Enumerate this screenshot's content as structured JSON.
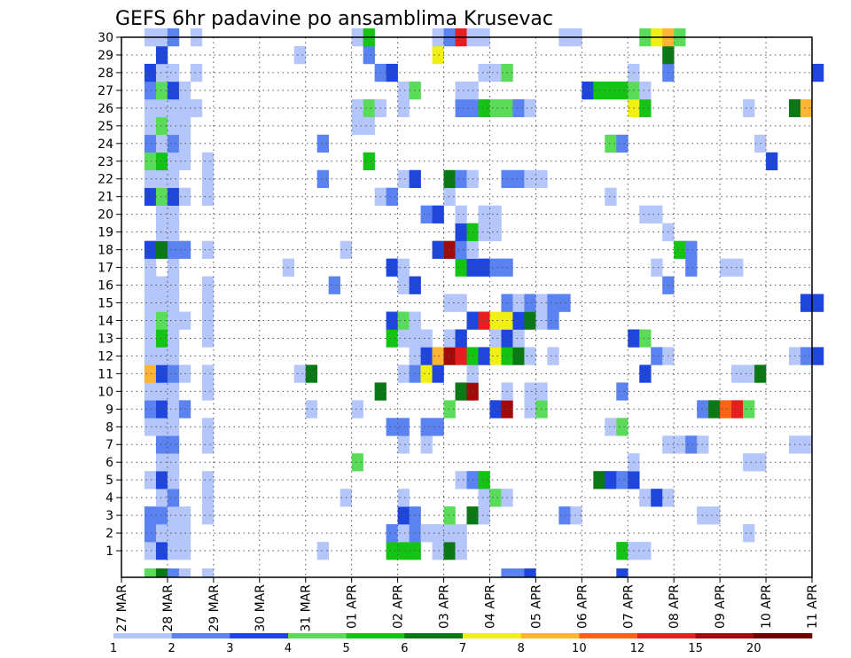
{
  "chart_data": {
    "type": "heatmap",
    "title": "GEFS 6hr padavine po ansamblima Krusevac",
    "xlabel": "",
    "ylabel": "",
    "x_tick_labels": [
      "27 MAR",
      "28 MAR",
      "29 MAR",
      "30 MAR",
      "31 MAR",
      "01 APR",
      "02 APR",
      "03 APR",
      "04 APR",
      "05 APR",
      "06 APR",
      "07 APR",
      "08 APR",
      "09 APR",
      "10 APR",
      "11 APR"
    ],
    "y_tick_labels": [
      "1",
      "2",
      "3",
      "4",
      "5",
      "6",
      "7",
      "8",
      "9",
      "10",
      "11",
      "12",
      "13",
      "14",
      "15",
      "16",
      "17",
      "18",
      "19",
      "20",
      "21",
      "22",
      "23",
      "24",
      "25",
      "26",
      "27",
      "28",
      "29",
      "30"
    ],
    "members": 30,
    "steps_per_day": 4,
    "grid": "dotted",
    "colorbar": {
      "position": "bottom",
      "levels": [
        "1",
        "2",
        "3",
        "4",
        "5",
        "6",
        "7",
        "8",
        "10",
        "12",
        "15",
        "20"
      ],
      "colors": [
        "#b4c6fa",
        "#5a82f0",
        "#1e46dc",
        "#5adc5a",
        "#14c314",
        "#0a7814",
        "#f0f014",
        "#ffb432",
        "#fa6414",
        "#e61e1e",
        "#a00a0a",
        "#6e0000"
      ]
    },
    "cells": [
      [
        1,
        2,
        1
      ],
      [
        1,
        3,
        3
      ],
      [
        1,
        4,
        1
      ],
      [
        1,
        5,
        1
      ],
      [
        1,
        17,
        1
      ],
      [
        1,
        23,
        5
      ],
      [
        1,
        24,
        5
      ],
      [
        1,
        25,
        5
      ],
      [
        1,
        27,
        1
      ],
      [
        1,
        28,
        6
      ],
      [
        1,
        29,
        1
      ],
      [
        1,
        43,
        5
      ],
      [
        1,
        44,
        1
      ],
      [
        1,
        45,
        1
      ],
      [
        2,
        2,
        2
      ],
      [
        2,
        3,
        1
      ],
      [
        2,
        4,
        1
      ],
      [
        2,
        5,
        1
      ],
      [
        2,
        23,
        2
      ],
      [
        2,
        24,
        1
      ],
      [
        2,
        25,
        2
      ],
      [
        2,
        26,
        1
      ],
      [
        2,
        27,
        1
      ],
      [
        2,
        28,
        1
      ],
      [
        2,
        29,
        1
      ],
      [
        2,
        54,
        1
      ],
      [
        3,
        2,
        2
      ],
      [
        3,
        3,
        2
      ],
      [
        3,
        4,
        1
      ],
      [
        3,
        5,
        1
      ],
      [
        3,
        7,
        1
      ],
      [
        3,
        24,
        3
      ],
      [
        3,
        25,
        2
      ],
      [
        3,
        28,
        4
      ],
      [
        3,
        30,
        6
      ],
      [
        3,
        31,
        1
      ],
      [
        3,
        38,
        2
      ],
      [
        3,
        39,
        1
      ],
      [
        3,
        50,
        1
      ],
      [
        3,
        51,
        1
      ],
      [
        4,
        3,
        1
      ],
      [
        4,
        4,
        2
      ],
      [
        4,
        7,
        1
      ],
      [
        4,
        19,
        1
      ],
      [
        4,
        24,
        1
      ],
      [
        4,
        31,
        1
      ],
      [
        4,
        32,
        4
      ],
      [
        4,
        33,
        1
      ],
      [
        4,
        45,
        1
      ],
      [
        4,
        46,
        3
      ],
      [
        4,
        47,
        1
      ],
      [
        5,
        2,
        1
      ],
      [
        5,
        3,
        3
      ],
      [
        5,
        4,
        1
      ],
      [
        5,
        7,
        1
      ],
      [
        5,
        29,
        1
      ],
      [
        5,
        30,
        2
      ],
      [
        5,
        31,
        5
      ],
      [
        5,
        41,
        6
      ],
      [
        5,
        42,
        3
      ],
      [
        5,
        43,
        2
      ],
      [
        5,
        44,
        3
      ],
      [
        6,
        3,
        1
      ],
      [
        6,
        4,
        1
      ],
      [
        6,
        20,
        4
      ],
      [
        6,
        44,
        1
      ],
      [
        6,
        54,
        1
      ],
      [
        6,
        55,
        1
      ],
      [
        7,
        3,
        2
      ],
      [
        7,
        4,
        2
      ],
      [
        7,
        7,
        1
      ],
      [
        7,
        24,
        1
      ],
      [
        7,
        26,
        1
      ],
      [
        7,
        47,
        1
      ],
      [
        7,
        48,
        1
      ],
      [
        7,
        49,
        2
      ],
      [
        7,
        50,
        1
      ],
      [
        7,
        58,
        1
      ],
      [
        7,
        59,
        1
      ],
      [
        8,
        2,
        1
      ],
      [
        8,
        3,
        1
      ],
      [
        8,
        4,
        1
      ],
      [
        8,
        7,
        1
      ],
      [
        8,
        23,
        2
      ],
      [
        8,
        24,
        2
      ],
      [
        8,
        26,
        2
      ],
      [
        8,
        27,
        2
      ],
      [
        8,
        42,
        1
      ],
      [
        8,
        43,
        4
      ],
      [
        9,
        2,
        2
      ],
      [
        9,
        3,
        3
      ],
      [
        9,
        4,
        1
      ],
      [
        9,
        5,
        2
      ],
      [
        9,
        16,
        1
      ],
      [
        9,
        20,
        1
      ],
      [
        9,
        28,
        4
      ],
      [
        9,
        32,
        3
      ],
      [
        9,
        33,
        11
      ],
      [
        9,
        35,
        1
      ],
      [
        9,
        36,
        4
      ],
      [
        9,
        50,
        2
      ],
      [
        9,
        51,
        6
      ],
      [
        9,
        52,
        9
      ],
      [
        9,
        53,
        10
      ],
      [
        9,
        54,
        4
      ],
      [
        10,
        2,
        1
      ],
      [
        10,
        3,
        1
      ],
      [
        10,
        4,
        1
      ],
      [
        10,
        7,
        1
      ],
      [
        10,
        22,
        6
      ],
      [
        10,
        29,
        6
      ],
      [
        10,
        30,
        11
      ],
      [
        10,
        33,
        1
      ],
      [
        10,
        35,
        1
      ],
      [
        10,
        36,
        1
      ],
      [
        10,
        43,
        2
      ],
      [
        11,
        2,
        8
      ],
      [
        11,
        3,
        3
      ],
      [
        11,
        4,
        2
      ],
      [
        11,
        5,
        1
      ],
      [
        11,
        7,
        1
      ],
      [
        11,
        15,
        1
      ],
      [
        11,
        16,
        6
      ],
      [
        11,
        24,
        1
      ],
      [
        11,
        25,
        2
      ],
      [
        11,
        26,
        7
      ],
      [
        11,
        27,
        3
      ],
      [
        11,
        30,
        1
      ],
      [
        11,
        45,
        3
      ],
      [
        11,
        53,
        1
      ],
      [
        11,
        54,
        1
      ],
      [
        11,
        55,
        6
      ],
      [
        12,
        2,
        1
      ],
      [
        12,
        3,
        1
      ],
      [
        12,
        4,
        1
      ],
      [
        12,
        25,
        1
      ],
      [
        12,
        26,
        3
      ],
      [
        12,
        27,
        8
      ],
      [
        12,
        28,
        11
      ],
      [
        12,
        29,
        10
      ],
      [
        12,
        30,
        5
      ],
      [
        12,
        31,
        3
      ],
      [
        12,
        32,
        7
      ],
      [
        12,
        33,
        5
      ],
      [
        12,
        34,
        6
      ],
      [
        12,
        35,
        1
      ],
      [
        12,
        37,
        1
      ],
      [
        12,
        46,
        2
      ],
      [
        12,
        47,
        1
      ],
      [
        12,
        58,
        1
      ],
      [
        12,
        59,
        2
      ],
      [
        12,
        60,
        3
      ],
      [
        13,
        2,
        1
      ],
      [
        13,
        3,
        5
      ],
      [
        13,
        4,
        1
      ],
      [
        13,
        7,
        1
      ],
      [
        13,
        23,
        5
      ],
      [
        13,
        24,
        1
      ],
      [
        13,
        25,
        1
      ],
      [
        13,
        26,
        1
      ],
      [
        13,
        28,
        1
      ],
      [
        13,
        29,
        3
      ],
      [
        13,
        32,
        1
      ],
      [
        13,
        33,
        3
      ],
      [
        13,
        34,
        1
      ],
      [
        13,
        44,
        3
      ],
      [
        13,
        45,
        4
      ],
      [
        14,
        2,
        1
      ],
      [
        14,
        3,
        4
      ],
      [
        14,
        4,
        1
      ],
      [
        14,
        5,
        1
      ],
      [
        14,
        7,
        1
      ],
      [
        14,
        23,
        3
      ],
      [
        14,
        24,
        4
      ],
      [
        14,
        25,
        1
      ],
      [
        14,
        30,
        3
      ],
      [
        14,
        31,
        10
      ],
      [
        14,
        32,
        7
      ],
      [
        14,
        33,
        7
      ],
      [
        14,
        34,
        3
      ],
      [
        14,
        35,
        6
      ],
      [
        14,
        36,
        1
      ],
      [
        14,
        37,
        2
      ],
      [
        15,
        2,
        1
      ],
      [
        15,
        3,
        1
      ],
      [
        15,
        4,
        1
      ],
      [
        15,
        7,
        1
      ],
      [
        15,
        28,
        1
      ],
      [
        15,
        29,
        1
      ],
      [
        15,
        33,
        2
      ],
      [
        15,
        34,
        1
      ],
      [
        15,
        35,
        2
      ],
      [
        15,
        36,
        1
      ],
      [
        15,
        37,
        2
      ],
      [
        15,
        38,
        2
      ],
      [
        15,
        59,
        3
      ],
      [
        15,
        60,
        3
      ],
      [
        16,
        2,
        1
      ],
      [
        16,
        3,
        1
      ],
      [
        16,
        4,
        1
      ],
      [
        16,
        7,
        1
      ],
      [
        16,
        18,
        2
      ],
      [
        16,
        24,
        1
      ],
      [
        16,
        25,
        3
      ],
      [
        16,
        47,
        2
      ],
      [
        17,
        2,
        1
      ],
      [
        17,
        4,
        1
      ],
      [
        17,
        14,
        1
      ],
      [
        17,
        23,
        3
      ],
      [
        17,
        24,
        1
      ],
      [
        17,
        29,
        5
      ],
      [
        17,
        30,
        3
      ],
      [
        17,
        31,
        3
      ],
      [
        17,
        32,
        2
      ],
      [
        17,
        33,
        2
      ],
      [
        17,
        46,
        1
      ],
      [
        17,
        49,
        2
      ],
      [
        17,
        52,
        1
      ],
      [
        17,
        53,
        1
      ],
      [
        18,
        2,
        3
      ],
      [
        18,
        3,
        6
      ],
      [
        18,
        4,
        2
      ],
      [
        18,
        5,
        2
      ],
      [
        18,
        7,
        1
      ],
      [
        18,
        19,
        1
      ],
      [
        18,
        27,
        3
      ],
      [
        18,
        28,
        11
      ],
      [
        18,
        29,
        2
      ],
      [
        18,
        30,
        1
      ],
      [
        18,
        48,
        5
      ],
      [
        18,
        49,
        2
      ],
      [
        19,
        3,
        1
      ],
      [
        19,
        4,
        1
      ],
      [
        19,
        29,
        3
      ],
      [
        19,
        30,
        5
      ],
      [
        19,
        31,
        1
      ],
      [
        19,
        32,
        1
      ],
      [
        19,
        47,
        1
      ],
      [
        20,
        3,
        1
      ],
      [
        20,
        4,
        1
      ],
      [
        20,
        26,
        2
      ],
      [
        20,
        27,
        3
      ],
      [
        20,
        29,
        1
      ],
      [
        20,
        31,
        1
      ],
      [
        20,
        32,
        1
      ],
      [
        20,
        45,
        1
      ],
      [
        20,
        46,
        1
      ],
      [
        21,
        2,
        3
      ],
      [
        21,
        3,
        4
      ],
      [
        21,
        4,
        3
      ],
      [
        21,
        5,
        1
      ],
      [
        21,
        7,
        1
      ],
      [
        21,
        22,
        1
      ],
      [
        21,
        23,
        2
      ],
      [
        21,
        28,
        1
      ],
      [
        21,
        42,
        1
      ],
      [
        22,
        2,
        1
      ],
      [
        22,
        3,
        1
      ],
      [
        22,
        4,
        1
      ],
      [
        22,
        7,
        1
      ],
      [
        22,
        17,
        2
      ],
      [
        22,
        24,
        1
      ],
      [
        22,
        25,
        3
      ],
      [
        22,
        28,
        6
      ],
      [
        22,
        29,
        2
      ],
      [
        22,
        30,
        1
      ],
      [
        22,
        33,
        2
      ],
      [
        22,
        34,
        2
      ],
      [
        22,
        35,
        1
      ],
      [
        22,
        36,
        1
      ],
      [
        23,
        2,
        4
      ],
      [
        23,
        3,
        5
      ],
      [
        23,
        4,
        1
      ],
      [
        23,
        5,
        1
      ],
      [
        23,
        7,
        1
      ],
      [
        23,
        21,
        5
      ],
      [
        23,
        56,
        3
      ],
      [
        24,
        2,
        2
      ],
      [
        24,
        3,
        1
      ],
      [
        24,
        4,
        2
      ],
      [
        24,
        5,
        1
      ],
      [
        24,
        17,
        2
      ],
      [
        24,
        42,
        4
      ],
      [
        24,
        43,
        2
      ],
      [
        24,
        55,
        1
      ],
      [
        25,
        2,
        1
      ],
      [
        25,
        3,
        4
      ],
      [
        25,
        4,
        1
      ],
      [
        25,
        5,
        1
      ],
      [
        25,
        20,
        1
      ],
      [
        25,
        21,
        1
      ],
      [
        26,
        2,
        1
      ],
      [
        26,
        3,
        1
      ],
      [
        26,
        4,
        1
      ],
      [
        26,
        5,
        1
      ],
      [
        26,
        6,
        1
      ],
      [
        26,
        20,
        1
      ],
      [
        26,
        21,
        4
      ],
      [
        26,
        22,
        1
      ],
      [
        26,
        24,
        1
      ],
      [
        26,
        29,
        2
      ],
      [
        26,
        30,
        2
      ],
      [
        26,
        31,
        5
      ],
      [
        26,
        32,
        4
      ],
      [
        26,
        33,
        4
      ],
      [
        26,
        34,
        2
      ],
      [
        26,
        35,
        1
      ],
      [
        26,
        44,
        7
      ],
      [
        26,
        45,
        5
      ],
      [
        26,
        54,
        1
      ],
      [
        26,
        58,
        6
      ],
      [
        26,
        59,
        8
      ],
      [
        27,
        2,
        2
      ],
      [
        27,
        3,
        4
      ],
      [
        27,
        4,
        3
      ],
      [
        27,
        5,
        1
      ],
      [
        27,
        24,
        1
      ],
      [
        27,
        25,
        4
      ],
      [
        27,
        29,
        1
      ],
      [
        27,
        30,
        1
      ],
      [
        27,
        40,
        3
      ],
      [
        27,
        41,
        5
      ],
      [
        27,
        42,
        5
      ],
      [
        27,
        43,
        5
      ],
      [
        27,
        44,
        4
      ],
      [
        27,
        45,
        1
      ],
      [
        28,
        2,
        3
      ],
      [
        28,
        3,
        1
      ],
      [
        28,
        4,
        1
      ],
      [
        28,
        6,
        1
      ],
      [
        28,
        22,
        2
      ],
      [
        28,
        23,
        3
      ],
      [
        28,
        31,
        1
      ],
      [
        28,
        32,
        1
      ],
      [
        28,
        33,
        4
      ],
      [
        28,
        44,
        1
      ],
      [
        28,
        47,
        2
      ],
      [
        28,
        60,
        3
      ],
      [
        29,
        3,
        3
      ],
      [
        29,
        15,
        1
      ],
      [
        29,
        21,
        2
      ],
      [
        29,
        27,
        7
      ],
      [
        29,
        47,
        6
      ],
      [
        30,
        2,
        1
      ],
      [
        30,
        3,
        1
      ],
      [
        30,
        4,
        2
      ],
      [
        30,
        6,
        1
      ],
      [
        30,
        20,
        1
      ],
      [
        30,
        21,
        5
      ],
      [
        30,
        27,
        1
      ],
      [
        30,
        28,
        2
      ],
      [
        30,
        29,
        10
      ],
      [
        30,
        30,
        1
      ],
      [
        30,
        31,
        1
      ],
      [
        30,
        38,
        1
      ],
      [
        30,
        39,
        1
      ],
      [
        30,
        45,
        4
      ],
      [
        30,
        46,
        7
      ],
      [
        30,
        47,
        8
      ],
      [
        30,
        48,
        4
      ],
      [
        0,
        2,
        4
      ],
      [
        0,
        3,
        6
      ],
      [
        0,
        4,
        2
      ],
      [
        0,
        5,
        1
      ],
      [
        0,
        7,
        1
      ],
      [
        0,
        33,
        2
      ],
      [
        0,
        34,
        2
      ],
      [
        0,
        35,
        3
      ],
      [
        0,
        43,
        3
      ]
    ]
  }
}
